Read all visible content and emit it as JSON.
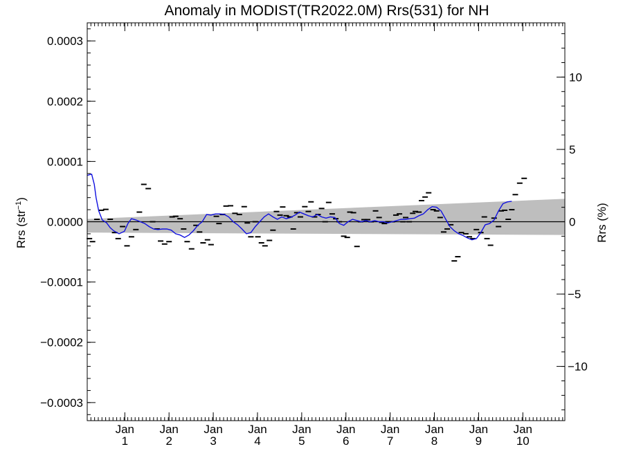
{
  "chart_data": {
    "type": "scatter",
    "title": "Anomaly in MODIST(TR2022.0M) Rrs(531) for NH",
    "ylabel_left": "Rrs (str",
    "ylabel_left_sup": "−1",
    "ylabel_left_close": ")",
    "ylabel_right": "Rrs (%)",
    "xlim": [
      0,
      10.8
    ],
    "ylim": [
      -0.00033,
      0.00033
    ],
    "right_ylim": [
      -13.75,
      13.75
    ],
    "x_ticks": [
      {
        "value": 0.85,
        "month": "Jan",
        "year": "1"
      },
      {
        "value": 1.85,
        "month": "Jan",
        "year": "2"
      },
      {
        "value": 2.85,
        "month": "Jan",
        "year": "3"
      },
      {
        "value": 3.85,
        "month": "Jan",
        "year": "4"
      },
      {
        "value": 4.85,
        "month": "Jan",
        "year": "5"
      },
      {
        "value": 5.85,
        "month": "Jan",
        "year": "6"
      },
      {
        "value": 6.85,
        "month": "Jan",
        "year": "7"
      },
      {
        "value": 7.85,
        "month": "Jan",
        "year": "8"
      },
      {
        "value": 8.85,
        "month": "Jan",
        "year": "9"
      },
      {
        "value": 9.85,
        "month": "Jan",
        "year": "10"
      }
    ],
    "y_ticks_left": [
      {
        "value": 0.0003,
        "label": "0.0003"
      },
      {
        "value": 0.0002,
        "label": "0.0002"
      },
      {
        "value": 0.0001,
        "label": "0.0001"
      },
      {
        "value": 0.0,
        "label": "0.0000"
      },
      {
        "value": -0.0001,
        "label": "−0.0001"
      },
      {
        "value": -0.0002,
        "label": "−0.0002"
      },
      {
        "value": -0.0003,
        "label": "−0.0003"
      }
    ],
    "y_ticks_right": [
      {
        "value": 10,
        "label": "10"
      },
      {
        "value": 5,
        "label": "5"
      },
      {
        "value": 0,
        "label": "0"
      },
      {
        "value": -5,
        "label": "−5"
      },
      {
        "value": -10,
        "label": "−10"
      }
    ],
    "zero_line": 0,
    "uncertainty_band": {
      "color": "#bebebe",
      "upper": [
        [
          0,
          4.5e-06
        ],
        [
          10.8,
          3.8e-05
        ]
      ],
      "lower": [
        [
          0,
          -1.8e-05
        ],
        [
          10.8,
          -2.2e-05
        ]
      ]
    },
    "series": [
      {
        "kind": "markers",
        "color": "#000000",
        "points": [
          [
            0.05,
            -2.8e-05
          ],
          [
            0.12,
            -3.3e-05
          ],
          [
            0.22,
            4e-06
          ],
          [
            0.32,
            1.9e-05
          ],
          [
            0.42,
            2.05e-05
          ],
          [
            0.52,
            4e-06
          ],
          [
            0.62,
            -1.8e-05
          ],
          [
            0.7,
            -2.8e-05
          ],
          [
            0.8,
            -8e-06
          ],
          [
            0.9,
            -4e-05
          ],
          [
            1.0,
            -2.5e-05
          ],
          [
            1.1,
            -1.3e-05
          ],
          [
            1.18,
            1.6e-05
          ],
          [
            1.28,
            6.2e-05
          ],
          [
            1.38,
            5.5e-05
          ],
          [
            1.48,
            0.0
          ],
          [
            1.58,
            -1.2e-05
          ],
          [
            1.66,
            -3.2e-05
          ],
          [
            1.75,
            -3.7e-05
          ],
          [
            1.85,
            -3.3e-05
          ],
          [
            1.92,
            8e-06
          ],
          [
            2.0,
            9e-06
          ],
          [
            2.1,
            5e-06
          ],
          [
            2.18,
            -1.2e-05
          ],
          [
            2.26,
            -3.3e-05
          ],
          [
            2.36,
            -4.5e-05
          ],
          [
            2.46,
            -6e-06
          ],
          [
            2.54,
            -1.7e-05
          ],
          [
            2.62,
            -3.5e-05
          ],
          [
            2.72,
            -3e-05
          ],
          [
            2.8,
            -3.8e-05
          ],
          [
            2.92,
            9e-06
          ],
          [
            2.98,
            -3e-06
          ],
          [
            3.06,
            1.2e-05
          ],
          [
            3.14,
            2.6e-05
          ],
          [
            3.24,
            2.65e-05
          ],
          [
            3.34,
            1.4e-05
          ],
          [
            3.44,
            1.2e-05
          ],
          [
            3.55,
            2.5e-05
          ],
          [
            3.62,
            -2e-06
          ],
          [
            3.7,
            -2.5e-05
          ],
          [
            3.8,
            0.0
          ],
          [
            3.86,
            -2.5e-05
          ],
          [
            3.94,
            -3.5e-05
          ],
          [
            4.02,
            -4e-05
          ],
          [
            4.12,
            -3.1e-05
          ],
          [
            4.2,
            -1.4e-05
          ],
          [
            4.28,
            1.7e-05
          ],
          [
            4.36,
            1.1e-05
          ],
          [
            4.42,
            2.45e-05
          ],
          [
            4.5,
            1e-05
          ],
          [
            4.58,
            8e-06
          ],
          [
            4.66,
            -1.2e-05
          ],
          [
            4.74,
            1.5e-05
          ],
          [
            4.82,
            8e-06
          ],
          [
            4.92,
            2.5e-05
          ],
          [
            5.0,
            1.7e-05
          ],
          [
            5.06,
            3.3e-05
          ],
          [
            5.14,
            8e-06
          ],
          [
            5.22,
            1.2e-05
          ],
          [
            5.3,
            2.2e-05
          ],
          [
            5.38,
            0.0
          ],
          [
            5.46,
            3.2e-05
          ],
          [
            5.54,
            1.3e-05
          ],
          [
            5.62,
            5e-06
          ],
          [
            5.7,
            0.0
          ],
          [
            5.8,
            -2.4e-05
          ],
          [
            5.88,
            -2.6e-05
          ],
          [
            5.94,
            1.6e-05
          ],
          [
            6.02,
            1.5e-05
          ],
          [
            6.1,
            -4.1e-05
          ],
          [
            6.18,
            0.0
          ],
          [
            6.26,
            3.5e-06
          ],
          [
            6.34,
            3.5e-06
          ],
          [
            6.42,
            0.0
          ],
          [
            6.52,
            1.8e-05
          ],
          [
            6.6,
            7e-06
          ],
          [
            6.66,
            -1e-06
          ],
          [
            6.72,
            -3e-06
          ],
          [
            6.8,
            0.0
          ],
          [
            6.9,
            0.0
          ],
          [
            6.98,
            1.1e-05
          ],
          [
            7.06,
            1.3e-05
          ],
          [
            7.14,
            0.0
          ],
          [
            7.2,
            7e-06
          ],
          [
            7.28,
            0.0
          ],
          [
            7.36,
            1.4e-05
          ],
          [
            7.42,
            1.7e-05
          ],
          [
            7.5,
            1.6e-05
          ],
          [
            7.56,
            3.5e-05
          ],
          [
            7.64,
            4.1e-05
          ],
          [
            7.72,
            4.8e-05
          ],
          [
            7.82,
            2e-05
          ],
          [
            7.9,
            1.8e-05
          ],
          [
            7.98,
            7e-06
          ],
          [
            8.06,
            -1.7e-05
          ],
          [
            8.14,
            -1.2e-05
          ],
          [
            8.22,
            -5e-06
          ],
          [
            8.3,
            -6.5e-05
          ],
          [
            8.38,
            -5.8e-05
          ],
          [
            8.46,
            -1.8e-05
          ],
          [
            8.56,
            -2e-05
          ],
          [
            8.64,
            -2.5e-05
          ],
          [
            8.72,
            -2.8e-05
          ],
          [
            8.8,
            -1.3e-05
          ],
          [
            8.9,
            -1.8e-05
          ],
          [
            8.98,
            8e-06
          ],
          [
            9.04,
            -2.8e-05
          ],
          [
            9.12,
            -3.9e-05
          ],
          [
            9.2,
            6e-06
          ],
          [
            9.3,
            -8e-06
          ],
          [
            9.36,
            1.8e-05
          ],
          [
            9.44,
            1.9e-05
          ],
          [
            9.52,
            4e-06
          ],
          [
            9.6,
            2e-05
          ],
          [
            9.68,
            4.5e-05
          ],
          [
            9.78,
            6.4e-05
          ],
          [
            9.88,
            7.2e-05
          ]
        ]
      },
      {
        "kind": "line",
        "color": "#1010e0",
        "points": [
          [
            0.0,
            7.7e-05
          ],
          [
            0.1,
            7.9e-05
          ],
          [
            0.16,
            6.2e-05
          ],
          [
            0.2,
            4e-05
          ],
          [
            0.26,
            1.8e-05
          ],
          [
            0.34,
            3e-06
          ],
          [
            0.44,
            -2e-06
          ],
          [
            0.52,
            -1e-05
          ],
          [
            0.6,
            -1.5e-05
          ],
          [
            0.72,
            -2e-05
          ],
          [
            0.84,
            -1.6e-05
          ],
          [
            0.92,
            -3e-06
          ],
          [
            1.0,
            5e-06
          ],
          [
            1.1,
            3e-06
          ],
          [
            1.2,
            0.0
          ],
          [
            1.3,
            -3e-06
          ],
          [
            1.4,
            -8e-06
          ],
          [
            1.5,
            -1.2e-05
          ],
          [
            1.6,
            -1.3e-05
          ],
          [
            1.7,
            -1.2e-05
          ],
          [
            1.8,
            -1.2e-05
          ],
          [
            1.9,
            -1.4e-05
          ],
          [
            2.0,
            -2e-05
          ],
          [
            2.1,
            -2.2e-05
          ],
          [
            2.2,
            -2.6e-05
          ],
          [
            2.3,
            -2.2e-05
          ],
          [
            2.4,
            -1.5e-05
          ],
          [
            2.5,
            -6e-06
          ],
          [
            2.6,
            0.0
          ],
          [
            2.7,
            1.2e-05
          ],
          [
            2.8,
            1.1e-05
          ],
          [
            2.9,
            1.3e-05
          ],
          [
            3.0,
            1.3e-05
          ],
          [
            3.1,
            1.2e-05
          ],
          [
            3.2,
            8e-06
          ],
          [
            3.3,
            0.0
          ],
          [
            3.4,
            -5e-06
          ],
          [
            3.5,
            -1.2e-05
          ],
          [
            3.6,
            -2e-05
          ],
          [
            3.7,
            -1.8e-05
          ],
          [
            3.8,
            -8e-06
          ],
          [
            3.9,
            0.0
          ],
          [
            4.0,
            8e-06
          ],
          [
            4.1,
            1.3e-05
          ],
          [
            4.2,
            8e-06
          ],
          [
            4.3,
            4e-06
          ],
          [
            4.4,
            8e-06
          ],
          [
            4.5,
            5e-06
          ],
          [
            4.6,
            7e-06
          ],
          [
            4.7,
            1.1e-05
          ],
          [
            4.8,
            1.6e-05
          ],
          [
            4.9,
            1.3e-05
          ],
          [
            5.0,
            1e-05
          ],
          [
            5.1,
            8e-06
          ],
          [
            5.2,
            1.2e-05
          ],
          [
            5.3,
            8e-06
          ],
          [
            5.4,
            6e-06
          ],
          [
            5.5,
            8e-06
          ],
          [
            5.6,
            7e-06
          ],
          [
            5.7,
            -3e-06
          ],
          [
            5.8,
            -6e-06
          ],
          [
            5.9,
            0.0
          ],
          [
            6.0,
            4e-06
          ],
          [
            6.1,
            2e-06
          ],
          [
            6.2,
            0.0
          ],
          [
            6.3,
            2e-06
          ],
          [
            6.4,
            0.0
          ],
          [
            6.5,
            2e-06
          ],
          [
            6.6,
            0.0
          ],
          [
            6.7,
            0.0
          ],
          [
            6.8,
            -2e-06
          ],
          [
            6.9,
            0.0
          ],
          [
            7.0,
            2e-06
          ],
          [
            7.1,
            4e-06
          ],
          [
            7.2,
            4e-06
          ],
          [
            7.3,
            5e-06
          ],
          [
            7.4,
            6e-06
          ],
          [
            7.5,
            1e-05
          ],
          [
            7.6,
            1.3e-05
          ],
          [
            7.7,
            2e-05
          ],
          [
            7.8,
            2.5e-05
          ],
          [
            7.9,
            2.4e-05
          ],
          [
            8.0,
            1.8e-05
          ],
          [
            8.1,
            5e-06
          ],
          [
            8.2,
            -8e-06
          ],
          [
            8.3,
            -1.5e-05
          ],
          [
            8.4,
            -2e-05
          ],
          [
            8.5,
            -2.3e-05
          ],
          [
            8.6,
            -2.7e-05
          ],
          [
            8.7,
            -3e-05
          ],
          [
            8.8,
            -2.8e-05
          ],
          [
            8.9,
            -1.8e-05
          ],
          [
            9.0,
            -5e-06
          ],
          [
            9.1,
            -3e-06
          ],
          [
            9.2,
            3e-06
          ],
          [
            9.3,
            1.8e-05
          ],
          [
            9.4,
            3e-05
          ],
          [
            9.5,
            3.3e-05
          ],
          [
            9.6,
            3.4e-05
          ]
        ]
      }
    ],
    "grid": false,
    "legend": "none"
  }
}
